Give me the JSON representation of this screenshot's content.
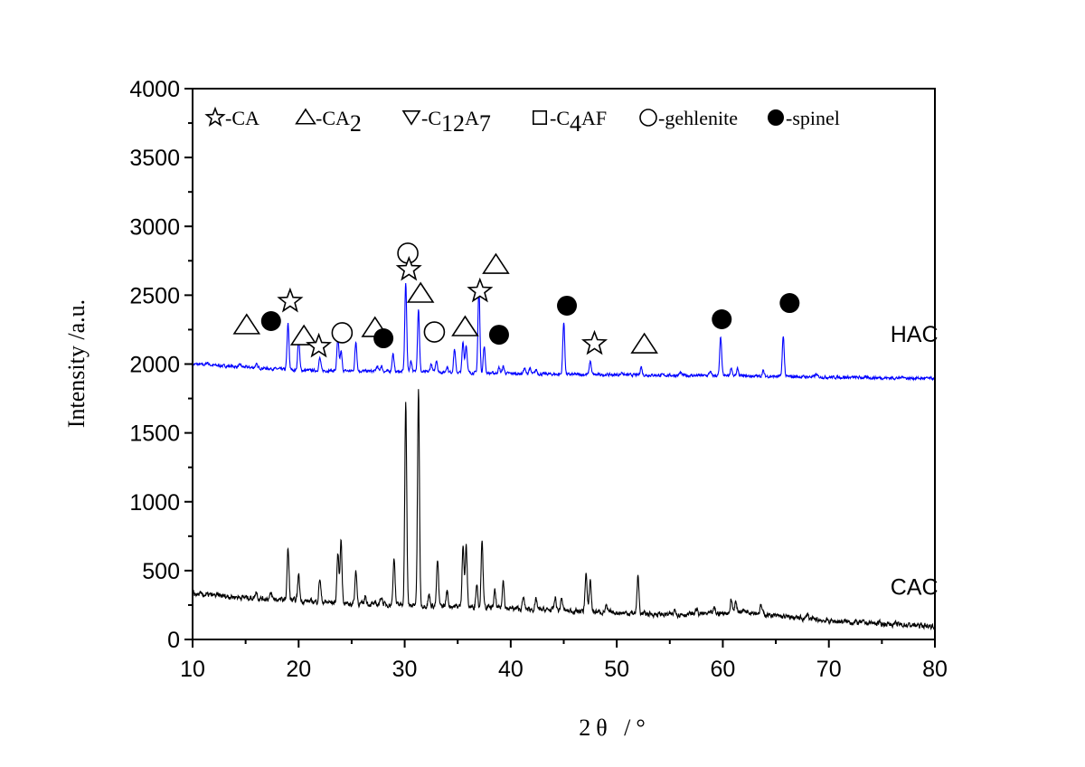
{
  "chart_data": {
    "type": "line",
    "title": "",
    "xlabel": "2θ /°",
    "ylabel": "Intensity /a.u.",
    "xlim": [
      10,
      80
    ],
    "ylim": [
      0,
      4000
    ],
    "xticks": [
      "10",
      "20",
      "30",
      "40",
      "50",
      "60",
      "70",
      "80"
    ],
    "yticks": [
      "0",
      "500",
      "1000",
      "1500",
      "2000",
      "2500",
      "3000",
      "3500",
      "4000"
    ],
    "grid": false,
    "legend_placement": "top",
    "legend": [
      {
        "symbol": "star",
        "label": "-CA"
      },
      {
        "symbol": "triangle",
        "label": "-CA",
        "sub": "2"
      },
      {
        "symbol": "triangle-down",
        "label": "-C",
        "sub": "12",
        "label2": "A",
        "sub2": "7"
      },
      {
        "symbol": "square",
        "label": "-C",
        "sub": "4",
        "label2": "AF"
      },
      {
        "symbol": "circle",
        "label": "-gehlenite"
      },
      {
        "symbol": "filled-circle",
        "label": "-spinel"
      }
    ],
    "series": [
      {
        "name": "HAC",
        "color": "#0000ff",
        "label_pos": [
          75.8,
          2220
        ],
        "baseline": [
          [
            10,
            2000
          ],
          [
            20,
            1955
          ],
          [
            30,
            1945
          ],
          [
            45,
            1925
          ],
          [
            60,
            1915
          ],
          [
            80,
            1895
          ]
        ],
        "noise": 12,
        "peaks": [
          [
            11.4,
            20
          ],
          [
            14.5,
            15
          ],
          [
            16,
            25
          ],
          [
            19.0,
            330
          ],
          [
            20.0,
            230
          ],
          [
            22.0,
            90
          ],
          [
            23.7,
            230
          ],
          [
            24.0,
            140
          ],
          [
            25.4,
            210
          ],
          [
            27.4,
            35
          ],
          [
            27.8,
            40
          ],
          [
            28.9,
            130
          ],
          [
            30.1,
            640
          ],
          [
            30.6,
            80
          ],
          [
            31.3,
            460
          ],
          [
            32.5,
            60
          ],
          [
            33.0,
            90
          ],
          [
            34.0,
            45
          ],
          [
            34.7,
            170
          ],
          [
            35.5,
            220
          ],
          [
            35.8,
            200
          ],
          [
            37.0,
            620
          ],
          [
            37.5,
            190
          ],
          [
            38.9,
            40
          ],
          [
            39.3,
            50
          ],
          [
            41.3,
            40
          ],
          [
            41.8,
            40
          ],
          [
            42.4,
            30
          ],
          [
            45.0,
            380
          ],
          [
            47.5,
            100
          ],
          [
            50.5,
            20
          ],
          [
            52.3,
            60
          ],
          [
            56,
            20
          ],
          [
            58.8,
            30
          ],
          [
            59.8,
            280
          ],
          [
            60.8,
            60
          ],
          [
            61.4,
            50
          ],
          [
            63.8,
            40
          ],
          [
            65.7,
            290
          ],
          [
            68.8,
            20
          ],
          [
            77,
            15
          ]
        ]
      },
      {
        "name": "CAC",
        "color": "#000000",
        "label_pos": [
          75.8,
          385
        ],
        "baseline": [
          [
            10,
            330
          ],
          [
            18,
            290
          ],
          [
            25,
            260
          ],
          [
            35,
            240
          ],
          [
            45,
            210
          ],
          [
            55,
            180
          ],
          [
            60,
            190
          ],
          [
            62,
            210
          ],
          [
            65,
            170
          ],
          [
            70,
            135
          ],
          [
            80,
            95
          ]
        ],
        "noise": 22,
        "peaks": [
          [
            16,
            50
          ],
          [
            17.4,
            40
          ],
          [
            19.0,
            370
          ],
          [
            20.0,
            190
          ],
          [
            22.0,
            170
          ],
          [
            23.7,
            360
          ],
          [
            24.0,
            460
          ],
          [
            25.4,
            240
          ],
          [
            26.3,
            60
          ],
          [
            27.8,
            60
          ],
          [
            29.0,
            350
          ],
          [
            30.1,
            1470
          ],
          [
            31.3,
            1560
          ],
          [
            32.3,
            80
          ],
          [
            33.1,
            330
          ],
          [
            34.0,
            110
          ],
          [
            35.5,
            450
          ],
          [
            35.8,
            440
          ],
          [
            36.8,
            170
          ],
          [
            37.3,
            500
          ],
          [
            38.5,
            120
          ],
          [
            39.3,
            200
          ],
          [
            41.2,
            80
          ],
          [
            42.4,
            70
          ],
          [
            44.2,
            90
          ],
          [
            44.8,
            90
          ],
          [
            47.1,
            280
          ],
          [
            47.5,
            230
          ],
          [
            49,
            40
          ],
          [
            52.0,
            270
          ],
          [
            55.5,
            40
          ],
          [
            57.5,
            40
          ],
          [
            59.2,
            40
          ],
          [
            60.8,
            90
          ],
          [
            61.2,
            70
          ],
          [
            63.6,
            60
          ],
          [
            68.0,
            40
          ]
        ]
      }
    ],
    "markers": [
      {
        "symbol": "triangle",
        "x": 15.1,
        "y": 2280
      },
      {
        "symbol": "filled-circle",
        "x": 17.4,
        "y": 2312
      },
      {
        "symbol": "star",
        "x": 19.2,
        "y": 2456
      },
      {
        "symbol": "triangle",
        "x": 20.5,
        "y": 2200
      },
      {
        "symbol": "star",
        "x": 21.9,
        "y": 2128
      },
      {
        "symbol": "circle",
        "x": 24.1,
        "y": 2227
      },
      {
        "symbol": "triangle",
        "x": 27.2,
        "y": 2260
      },
      {
        "symbol": "filled-circle",
        "x": 28.0,
        "y": 2187
      },
      {
        "symbol": "circle",
        "x": 30.3,
        "y": 2805
      },
      {
        "symbol": "star",
        "x": 30.4,
        "y": 2686
      },
      {
        "symbol": "triangle",
        "x": 31.5,
        "y": 2509
      },
      {
        "symbol": "circle",
        "x": 32.8,
        "y": 2233
      },
      {
        "symbol": "triangle",
        "x": 35.7,
        "y": 2266
      },
      {
        "symbol": "star",
        "x": 37.1,
        "y": 2529
      },
      {
        "symbol": "triangle",
        "x": 38.6,
        "y": 2719
      },
      {
        "symbol": "filled-circle",
        "x": 38.9,
        "y": 2213
      },
      {
        "symbol": "filled-circle",
        "x": 45.3,
        "y": 2424
      },
      {
        "symbol": "star",
        "x": 47.9,
        "y": 2148
      },
      {
        "symbol": "triangle",
        "x": 52.6,
        "y": 2141
      },
      {
        "symbol": "filled-circle",
        "x": 59.9,
        "y": 2325
      },
      {
        "symbol": "filled-circle",
        "x": 66.3,
        "y": 2443
      }
    ]
  }
}
